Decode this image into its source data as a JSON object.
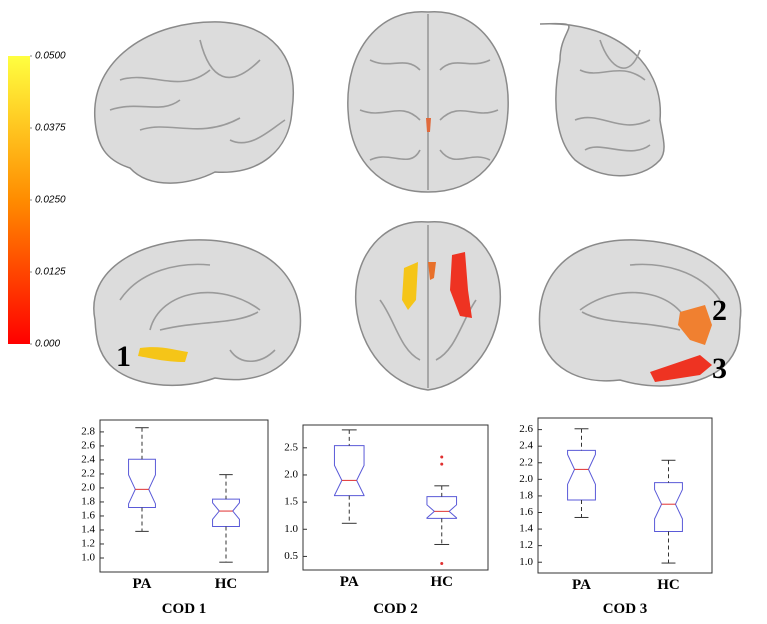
{
  "brain_labels": [
    "1",
    "2",
    "3"
  ],
  "chart_data": [
    {
      "type": "colorbar",
      "colors": [
        "#ff0000",
        "#ff8c00",
        "#ffff40"
      ],
      "ylim": [
        0,
        0.05
      ],
      "yticks": [
        {
          "value": 0.05,
          "label": "0.0500"
        },
        {
          "value": 0.0375,
          "label": "0.0375"
        },
        {
          "value": 0.025,
          "label": "0.0250"
        },
        {
          "value": 0.0125,
          "label": "0.0125"
        },
        {
          "value": 0,
          "label": "0.000"
        }
      ]
    },
    {
      "type": "box",
      "title": "COD 1",
      "categories": [
        "PA",
        "HC"
      ],
      "box_color": "#5a5ad8",
      "median_color": "#e03030",
      "whisker_color": "#333333",
      "ylim": [
        0.8,
        2.97
      ],
      "yticks": [
        {
          "value": 1,
          "label": "1.0"
        },
        1.2,
        1.4,
        1.6,
        1.8,
        {
          "value": 2,
          "label": "2.0"
        },
        2.2,
        2.4,
        2.6,
        2.8
      ],
      "boxes": [
        {
          "min": 1.38,
          "q1": 1.72,
          "median": 1.98,
          "q3": 2.41,
          "max": 2.86,
          "outliers": []
        },
        {
          "min": 0.94,
          "q1": 1.45,
          "median": 1.67,
          "q3": 1.84,
          "max": 2.19,
          "outliers": []
        }
      ]
    },
    {
      "type": "box",
      "title": "COD 2",
      "categories": [
        "PA",
        "HC"
      ],
      "box_color": "#5a5ad8",
      "median_color": "#e03030",
      "whisker_color": "#333333",
      "ylim": [
        0.25,
        2.92
      ],
      "yticks": [
        0.5,
        {
          "value": 1,
          "label": "1.0"
        },
        1.5,
        {
          "value": 2,
          "label": "2.0"
        },
        2.5
      ],
      "boxes": [
        {
          "min": 1.11,
          "q1": 1.62,
          "median": 1.9,
          "q3": 2.54,
          "max": 2.83,
          "outliers": []
        },
        {
          "min": 0.72,
          "q1": 1.2,
          "median": 1.33,
          "q3": 1.6,
          "max": 1.8,
          "outliers": [
            2.33,
            2.2,
            0.37
          ]
        }
      ]
    },
    {
      "type": "box",
      "title": "COD 3",
      "categories": [
        "PA",
        "HC"
      ],
      "box_color": "#5a5ad8",
      "median_color": "#e03030",
      "whisker_color": "#333333",
      "ylim": [
        0.87,
        2.74
      ],
      "yticks": [
        {
          "value": 1,
          "label": "1.0"
        },
        1.2,
        1.4,
        1.6,
        1.8,
        {
          "value": 2,
          "label": "2.0"
        },
        2.2,
        2.4,
        2.6
      ],
      "boxes": [
        {
          "min": 1.54,
          "q1": 1.75,
          "median": 2.12,
          "q3": 2.35,
          "max": 2.61,
          "outliers": []
        },
        {
          "min": 0.99,
          "q1": 1.37,
          "median": 1.7,
          "q3": 1.96,
          "max": 2.23,
          "outliers": []
        }
      ]
    }
  ]
}
